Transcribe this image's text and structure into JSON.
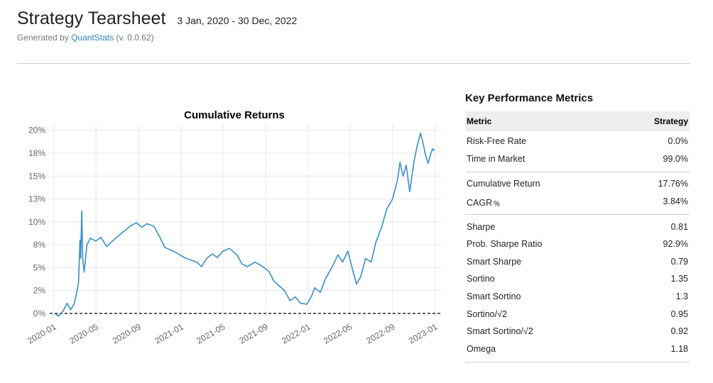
{
  "header": {
    "title": "Strategy Tearsheet",
    "date_range": "3 Jan, 2020 - 30 Dec, 2022",
    "generated_by": "Generated by",
    "brand": "QuantStats",
    "version": "(v. 0.0.62)"
  },
  "metrics": {
    "title": "Key Performance Metrics",
    "col_metric": "Metric",
    "col_strategy": "Strategy",
    "groups": [
      [
        {
          "label": "Risk-Free Rate",
          "value": "0.0%"
        },
        {
          "label": "Time in Market",
          "value": "99.0%"
        }
      ],
      [
        {
          "label": "Cumulative Return",
          "value": "17.76%"
        },
        {
          "label": "CAGR﹪",
          "value": "3.84%"
        }
      ],
      [
        {
          "label": "Sharpe",
          "value": "0.81"
        },
        {
          "label": "Prob. Sharpe Ratio",
          "value": "92.9%"
        },
        {
          "label": "Smart Sharpe",
          "value": "0.79"
        },
        {
          "label": "Sortino",
          "value": "1.35"
        },
        {
          "label": "Smart Sortino",
          "value": "1.3"
        },
        {
          "label": "Sortino/√2",
          "value": "0.95"
        },
        {
          "label": "Smart Sortino/√2",
          "value": "0.92"
        },
        {
          "label": "Omega",
          "value": "1.18"
        }
      ]
    ]
  },
  "colors": {
    "series": "#3a8fc7",
    "brand": "#2e86c1"
  },
  "chart_data": {
    "type": "line",
    "title": "Cumulative Returns",
    "xlabel": "",
    "ylabel": "",
    "grid": true,
    "ylim": [
      -0.4,
      20.6
    ],
    "y_ticks": [
      0,
      2.5,
      5,
      7.5,
      10,
      12.5,
      15,
      17.5,
      20
    ],
    "y_tick_labels": [
      "0%",
      "2%",
      "5%",
      "8%",
      "10%",
      "13%",
      "15%",
      "18%",
      "20%"
    ],
    "x_ticks": [
      "2020-01",
      "2020-05",
      "2020-09",
      "2021-01",
      "2021-05",
      "2021-09",
      "2022-01",
      "2022-05",
      "2022-09",
      "2023-01"
    ],
    "series": [
      {
        "points": [
          [
            "2020-01-03",
            0.0
          ],
          [
            "2020-01-15",
            -0.3
          ],
          [
            "2020-01-28",
            0.3
          ],
          [
            "2020-02-08",
            1.1
          ],
          [
            "2020-02-18",
            0.4
          ],
          [
            "2020-02-28",
            1.0
          ],
          [
            "2020-03-08",
            2.5
          ],
          [
            "2020-03-12",
            3.5
          ],
          [
            "2020-03-16",
            8.0
          ],
          [
            "2020-03-18",
            6.0
          ],
          [
            "2020-03-21",
            11.2
          ],
          [
            "2020-03-24",
            6.0
          ],
          [
            "2020-03-28",
            4.5
          ],
          [
            "2020-04-05",
            7.5
          ],
          [
            "2020-04-15",
            8.2
          ],
          [
            "2020-05-01",
            7.9
          ],
          [
            "2020-05-15",
            8.3
          ],
          [
            "2020-06-01",
            7.3
          ],
          [
            "2020-06-20",
            8.0
          ],
          [
            "2020-07-15",
            8.8
          ],
          [
            "2020-08-10",
            9.6
          ],
          [
            "2020-08-25",
            9.9
          ],
          [
            "2020-09-10",
            9.4
          ],
          [
            "2020-09-25",
            9.8
          ],
          [
            "2020-10-15",
            9.5
          ],
          [
            "2020-11-01",
            8.3
          ],
          [
            "2020-11-15",
            7.2
          ],
          [
            "2020-12-15",
            6.7
          ],
          [
            "2021-01-15",
            6.0
          ],
          [
            "2021-02-15",
            5.6
          ],
          [
            "2021-03-01",
            5.1
          ],
          [
            "2021-03-15",
            6.0
          ],
          [
            "2021-04-01",
            6.5
          ],
          [
            "2021-04-15",
            6.1
          ],
          [
            "2021-05-01",
            6.8
          ],
          [
            "2021-05-20",
            7.1
          ],
          [
            "2021-06-10",
            6.4
          ],
          [
            "2021-06-25",
            5.4
          ],
          [
            "2021-07-10",
            5.1
          ],
          [
            "2021-08-01",
            5.6
          ],
          [
            "2021-08-20",
            5.2
          ],
          [
            "2021-09-10",
            4.6
          ],
          [
            "2021-09-25",
            3.5
          ],
          [
            "2021-10-10",
            3.0
          ],
          [
            "2021-10-25",
            2.5
          ],
          [
            "2021-11-10",
            1.4
          ],
          [
            "2021-11-25",
            1.8
          ],
          [
            "2021-12-10",
            1.1
          ],
          [
            "2021-12-28",
            1.0
          ],
          [
            "2022-01-10",
            1.8
          ],
          [
            "2022-01-20",
            2.8
          ],
          [
            "2022-02-05",
            2.3
          ],
          [
            "2022-02-20",
            3.8
          ],
          [
            "2022-03-10",
            5.0
          ],
          [
            "2022-03-28",
            6.4
          ],
          [
            "2022-04-10",
            5.6
          ],
          [
            "2022-04-25",
            6.8
          ],
          [
            "2022-05-10",
            4.6
          ],
          [
            "2022-05-20",
            3.2
          ],
          [
            "2022-06-01",
            4.0
          ],
          [
            "2022-06-15",
            6.0
          ],
          [
            "2022-07-01",
            5.6
          ],
          [
            "2022-07-15",
            7.8
          ],
          [
            "2022-08-01",
            9.5
          ],
          [
            "2022-08-15",
            11.4
          ],
          [
            "2022-09-01",
            12.5
          ],
          [
            "2022-09-15",
            14.6
          ],
          [
            "2022-09-22",
            16.5
          ],
          [
            "2022-10-01",
            15.0
          ],
          [
            "2022-10-10",
            16.2
          ],
          [
            "2022-10-20",
            13.3
          ],
          [
            "2022-11-01",
            16.5
          ],
          [
            "2022-11-10",
            18.2
          ],
          [
            "2022-11-20",
            19.7
          ],
          [
            "2022-11-28",
            18.5
          ],
          [
            "2022-12-05",
            17.2
          ],
          [
            "2022-12-12",
            16.4
          ],
          [
            "2022-12-20",
            17.5
          ],
          [
            "2022-12-25",
            18.0
          ],
          [
            "2022-12-30",
            17.76
          ]
        ]
      }
    ]
  }
}
